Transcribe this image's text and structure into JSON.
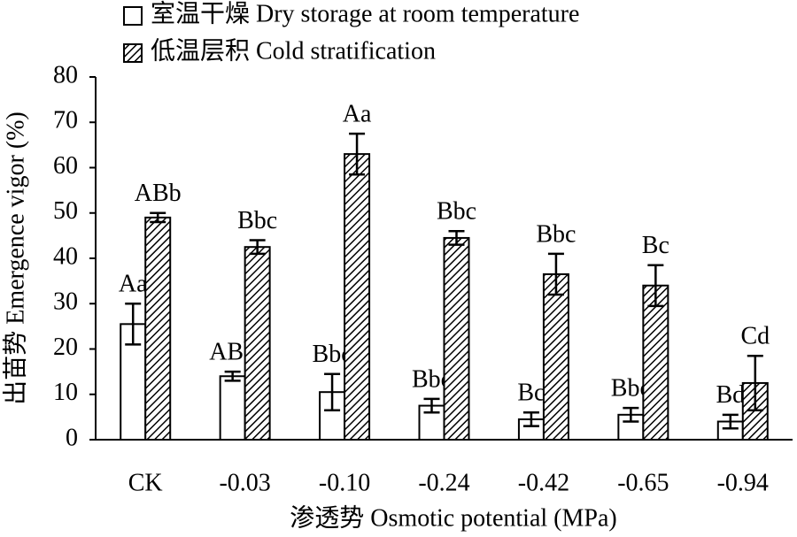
{
  "chart_data": {
    "type": "bar",
    "ylabel": "出苗势 Emergence vigor (%)",
    "xlabel": "渗透势 Osmotic potential (MPa)",
    "categories": [
      "CK",
      "-0.03",
      "-0.10",
      "-0.24",
      "-0.42",
      "-0.65",
      "-0.94"
    ],
    "series": [
      {
        "name": "室温干燥 Dry storage at room temperature",
        "color": "#ffffff",
        "hatch": false,
        "values": [
          25.5,
          14,
          10.5,
          7.5,
          4.5,
          5.5,
          4
        ],
        "errors": [
          4.5,
          1,
          4,
          1.5,
          1.5,
          1.5,
          1.5
        ],
        "letters": [
          "Aa",
          "ABb",
          "Bbc",
          "Bbc",
          "Bc",
          "Bbc",
          "Bd"
        ]
      },
      {
        "name": "低温层积 Cold stratification",
        "color": "#000000",
        "hatch": true,
        "values": [
          49,
          42.5,
          63,
          44.5,
          36.5,
          34,
          12.5
        ],
        "errors": [
          1,
          1.5,
          4.5,
          1.5,
          4.5,
          4.5,
          6
        ],
        "letters": [
          "ABb",
          "Bbc",
          "Aa",
          "Bbc",
          "Bbc",
          "Bc",
          "Cd"
        ]
      }
    ],
    "ylim": [
      0,
      80
    ],
    "yticks": [
      0,
      10,
      20,
      30,
      40,
      50,
      60,
      70,
      80
    ],
    "grid": false,
    "legend": "top-left"
  }
}
